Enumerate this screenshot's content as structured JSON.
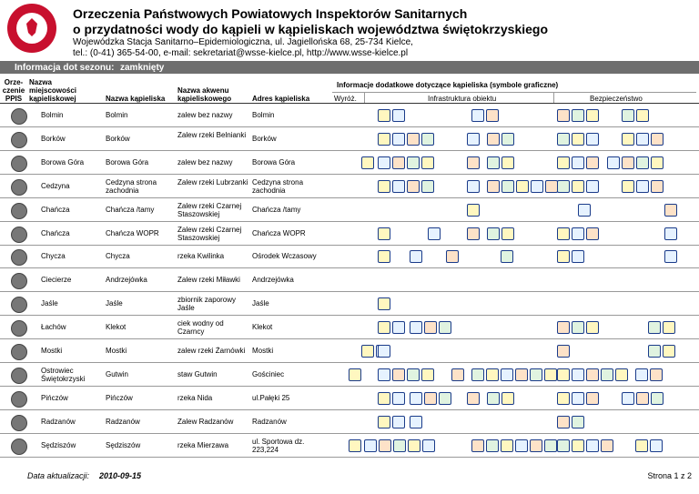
{
  "header": {
    "title_1": "Orzeczenia Państwowych Powiatowych Inspektorów Sanitarnych",
    "title_2": "o przydatności wody do kąpieli w kąpieliskach województwa świętokrzyskiego",
    "address_1": "Wojewódzka Stacja Sanitarno–Epidemiologiczna, ul. Jagiellońska 68, 25-734 Kielce,",
    "address_2": "tel.: (0-41) 365-54-00, e-mail: sekretariat@wsse-kielce.pl, http://www.wsse-kielce.pl"
  },
  "info_bar": {
    "label": "Informacja dot sezonu:",
    "value": "zamknięty"
  },
  "table": {
    "columns": [
      "Orze- czenie PPIS",
      "Nazwa miejscowości kąpieliskowej",
      "Nazwa kąpieliska",
      "Nazwa akwenu kąpieliskowego",
      "Adres kąpieliska"
    ],
    "extra_header": "Informacje dodatkowe dotyczące kąpieliska (symbole graficzne)",
    "extra_columns": [
      "Wyróż.",
      "Infrastruktura obiektu",
      "Bezpieczeństwo"
    ],
    "rows": [
      [
        "Bolmin",
        "Bolmin",
        "zalew bez nazwy",
        "Bolmin"
      ],
      [
        "Borków",
        "Borków",
        "Zalew rzeki Belnianki",
        "Borków"
      ],
      [
        "Borowa Góra",
        "Borowa Góra",
        "zalew bez nazwy",
        "Borowa Góra"
      ],
      [
        "Cedzyna",
        "Cedzyna strona zachodnia",
        "Zalew rzeki Lubrzanki",
        "Cedzyna strona zachodnia"
      ],
      [
        "Chańcza",
        "Chańcza /tamy",
        "Zalew rzeki Czarnej Staszowskiej",
        "Chańcza /tamy"
      ],
      [
        "Chańcza",
        "Chańcza WOPR",
        "Zalew rzeki Czarnej Staszowskiej",
        "Chańcza WOPR"
      ],
      [
        "Chycza",
        "Chycza",
        "rzeka Kwilinka",
        "Ośrodek Wczasowy"
      ],
      [
        "Ciecierze",
        "Andrzejówka",
        "Zalew rzeki Miławki",
        "Andrzejówka"
      ],
      [
        "Jaśle",
        "Jaśle",
        "zbiornik zaporowy Jaśle",
        "Jaśle"
      ],
      [
        "Łachów",
        "Klekot",
        "ciek wodny od Czarncy",
        "Klekot"
      ],
      [
        "Mostki",
        "Mostki",
        "zalew rzeki Żarnówki",
        "Mostki"
      ],
      [
        "Ostrowiec Świętokrzyski",
        "Gutwin",
        "staw Gutwin",
        "Gościniec"
      ],
      [
        "Pińczów",
        "Pińczów",
        "rzeka Nida",
        "ul.Pałęki 25"
      ],
      [
        "Radzanów",
        "Radzanów",
        "Zalew Radzanów",
        "Radzanów"
      ],
      [
        "Sędziszów",
        "Sędziszów",
        "rzeka Mierzawa",
        "ul. Sportowa dz. 223,224"
      ]
    ]
  },
  "footer": {
    "date_label": "Data aktualizacji:",
    "date": "2010-09-15",
    "page": "Strona 1 z 2"
  }
}
